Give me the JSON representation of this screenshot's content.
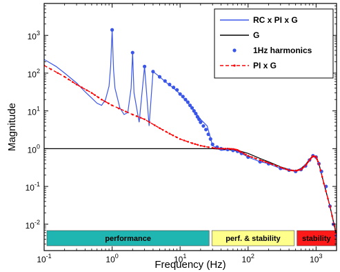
{
  "chart_data": {
    "type": "line",
    "xlabel": "Frequency (Hz)",
    "ylabel": "Magnitude",
    "x_scale": "log",
    "y_scale": "log",
    "xlim": [
      0.1,
      2000
    ],
    "ylim": [
      0.002,
      7000
    ],
    "x_ticks": [
      {
        "base": "10",
        "exp": "-1",
        "value": 0.1
      },
      {
        "base": "10",
        "exp": "0",
        "value": 1
      },
      {
        "base": "10",
        "exp": "1",
        "value": 10
      },
      {
        "base": "10",
        "exp": "2",
        "value": 100
      },
      {
        "base": "10",
        "exp": "3",
        "value": 1000
      }
    ],
    "y_ticks": [
      {
        "base": "10",
        "exp": "-2",
        "value": 0.01
      },
      {
        "base": "10",
        "exp": "-1",
        "value": 0.1
      },
      {
        "base": "10",
        "exp": "0",
        "value": 1
      },
      {
        "base": "10",
        "exp": "1",
        "value": 10
      },
      {
        "base": "10",
        "exp": "2",
        "value": 100
      },
      {
        "base": "10",
        "exp": "3",
        "value": 1000
      }
    ],
    "grid": false,
    "legend_position": "top-right",
    "series": [
      {
        "name": "RC x PI x G",
        "color": "#3a56e8",
        "style": "solid",
        "x": [
          0.1,
          0.15,
          0.2,
          0.3,
          0.4,
          0.5,
          0.6,
          0.7,
          0.8,
          0.9,
          0.95,
          1.0,
          1.05,
          1.1,
          1.3,
          1.5,
          1.7,
          1.9,
          2.0,
          2.1,
          2.5,
          3.0,
          3.5,
          4.0,
          5.0,
          6.0,
          8.0,
          10,
          15,
          20,
          25,
          30,
          40,
          50,
          60,
          70,
          80,
          100,
          150,
          200,
          300,
          400,
          500,
          600,
          700,
          800,
          900,
          1000,
          1100,
          1300,
          1600,
          2000
        ],
        "y": [
          230,
          150,
          100,
          55,
          32,
          22,
          16,
          14,
          20,
          45,
          150,
          1400,
          120,
          40,
          12,
          8,
          9,
          40,
          350,
          30,
          5,
          150,
          4,
          110,
          80,
          60,
          40,
          28,
          12,
          6,
          4,
          1.2,
          0.9,
          0.95,
          0.9,
          0.85,
          0.75,
          0.6,
          0.45,
          0.4,
          0.3,
          0.27,
          0.25,
          0.28,
          0.35,
          0.5,
          0.65,
          0.6,
          0.4,
          0.12,
          0.03,
          0.005
        ]
      },
      {
        "name": "G",
        "color": "#000000",
        "style": "solid",
        "x": [
          0.1,
          1,
          10,
          30,
          50,
          70,
          100,
          150,
          200,
          300,
          400,
          500,
          600,
          700,
          800,
          900,
          1000,
          1100,
          1300,
          1600,
          2000
        ],
        "y": [
          1.0,
          1.0,
          1.0,
          1.0,
          0.95,
          0.9,
          0.75,
          0.55,
          0.45,
          0.33,
          0.28,
          0.26,
          0.3,
          0.38,
          0.52,
          0.66,
          0.6,
          0.4,
          0.12,
          0.03,
          0.005
        ]
      },
      {
        "name": "1Hz harmonics",
        "color": "#3a56e8",
        "style": "markers",
        "x": [
          1,
          2,
          3,
          4,
          5,
          6,
          7,
          8,
          9,
          10,
          11,
          12,
          13,
          14,
          15,
          16,
          17,
          18,
          19,
          20,
          22,
          24,
          26,
          28,
          30,
          35,
          40,
          50,
          60,
          70,
          80,
          100,
          150,
          200,
          300,
          400,
          500,
          600,
          700,
          800,
          900,
          1000,
          1100,
          1200,
          1400,
          1600,
          1800,
          2000
        ],
        "y": [
          1400,
          350,
          150,
          110,
          80,
          62,
          50,
          42,
          36,
          28,
          24,
          20,
          17,
          14,
          12,
          10,
          8.5,
          7,
          6,
          5,
          4,
          3.2,
          2.4,
          1.8,
          1.3,
          1.1,
          1.0,
          0.95,
          0.9,
          0.85,
          0.75,
          0.6,
          0.45,
          0.4,
          0.3,
          0.27,
          0.25,
          0.28,
          0.35,
          0.5,
          0.65,
          0.6,
          0.4,
          0.25,
          0.1,
          0.03,
          0.01,
          0.005
        ]
      },
      {
        "name": "PI x G",
        "color": "#ff0000",
        "style": "dashed",
        "x": [
          0.1,
          0.2,
          0.3,
          0.5,
          0.7,
          1,
          2,
          3,
          5,
          7,
          10,
          15,
          20,
          30,
          40,
          50,
          60,
          70,
          80,
          100,
          150,
          200,
          300,
          400,
          500,
          600,
          700,
          800,
          900,
          1000,
          1100,
          1300,
          1600,
          2000
        ],
        "y": [
          160,
          80,
          50,
          30,
          20,
          14,
          8,
          6,
          3.5,
          2.5,
          1.8,
          1.4,
          1.2,
          1.05,
          1.0,
          1.0,
          0.98,
          0.92,
          0.8,
          0.65,
          0.5,
          0.42,
          0.32,
          0.27,
          0.26,
          0.28,
          0.36,
          0.5,
          0.64,
          0.6,
          0.4,
          0.12,
          0.03,
          0.005
        ]
      }
    ],
    "bands": [
      {
        "label": "performance",
        "x_start": 0.1,
        "x_end": 28,
        "color": "#1fb5b0"
      },
      {
        "label": "perf. & stability",
        "x_start": 28,
        "x_end": 500,
        "color": "#ffff8c"
      },
      {
        "label": "stability",
        "x_start": 500,
        "x_end": 2000,
        "color": "#ff1a1a"
      }
    ]
  }
}
